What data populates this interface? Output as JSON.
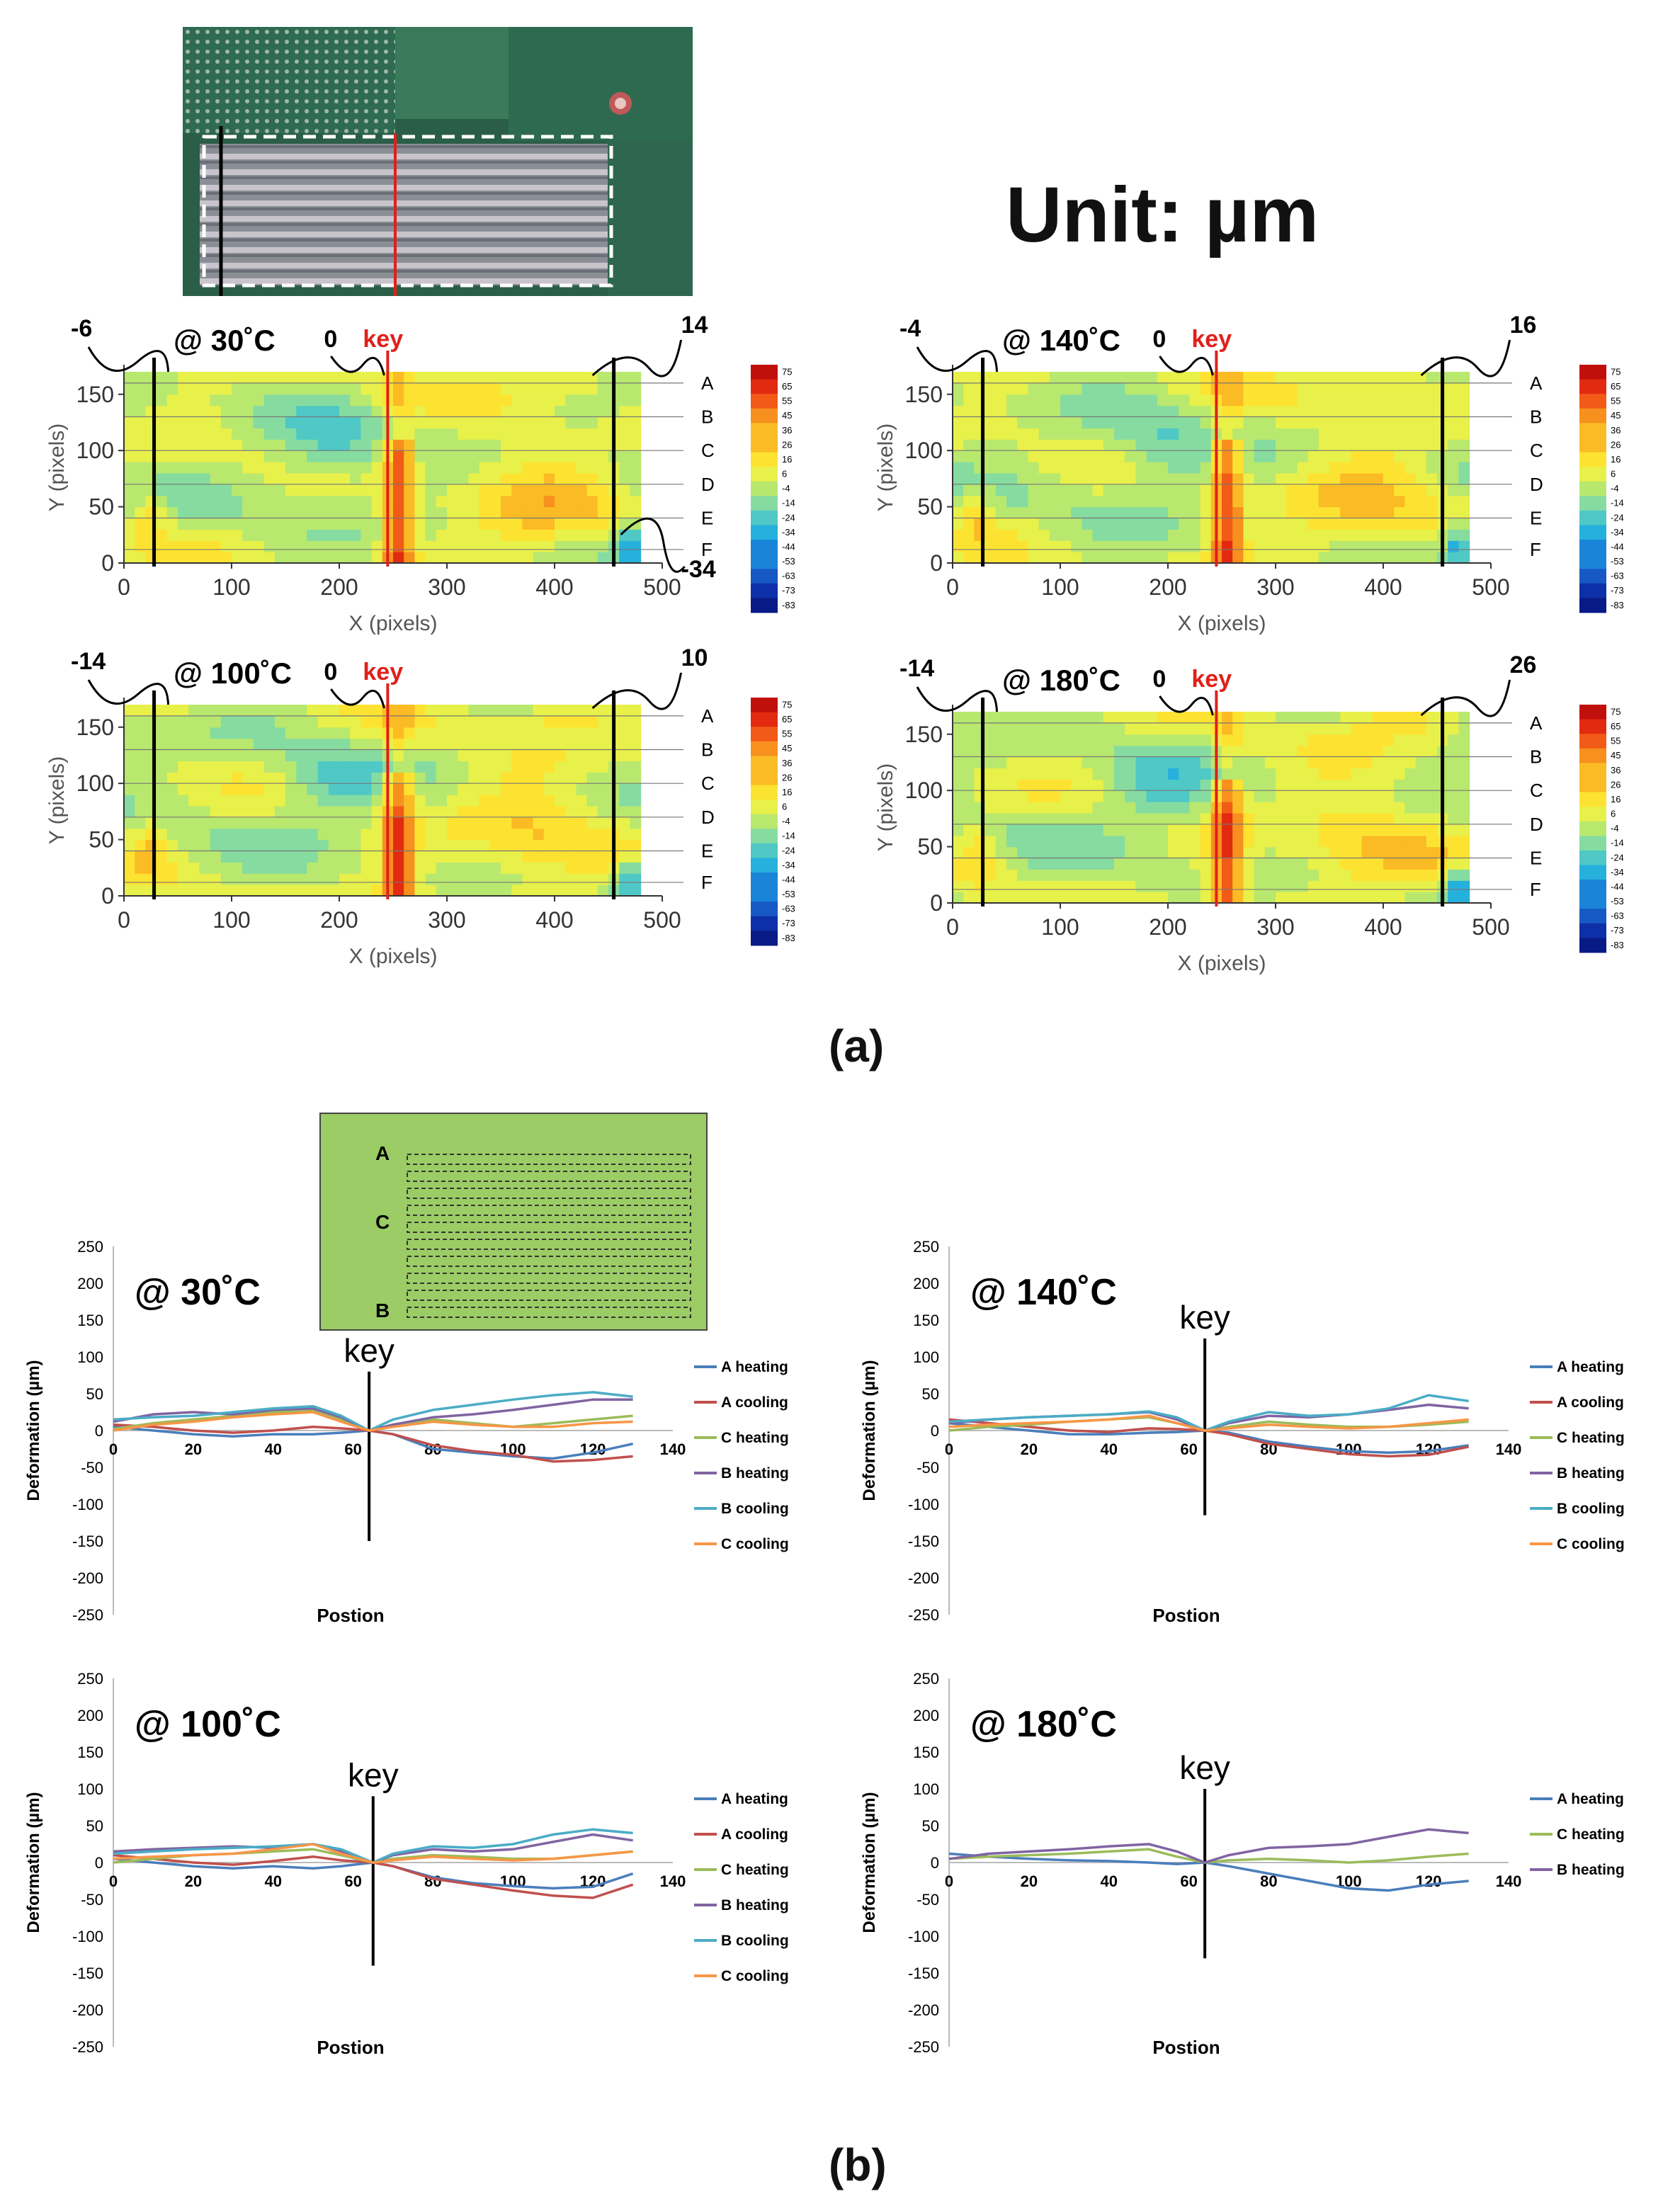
{
  "figure": {
    "unit_title": "Unit: µm",
    "panel_a_label": "(a)",
    "panel_b_label": "(b)"
  },
  "colors": {
    "colorbar": [
      "#c0100c",
      "#e22a10",
      "#f25a17",
      "#f7901e",
      "#fbbb24",
      "#fde331",
      "#e8f04a",
      "#b8e86e",
      "#86dca0",
      "#4fc8c6",
      "#26b0dc",
      "#1a84d8",
      "#1658c4",
      "#0d2fa8",
      "#081a86"
    ],
    "series": {
      "A heating": "#4a7ebb",
      "A cooling": "#c0504d",
      "C heating": "#9bbb59",
      "B heating": "#8064a2",
      "B cooling": "#4bacc6",
      "C cooling": "#f79646"
    },
    "key_line": "#e0201a",
    "inset_background": "#9ccc65"
  },
  "chart_data": [
    {
      "type": "heatmap",
      "title": "@ 30˚C",
      "xlabel": "X (pixels)",
      "ylabel": "Y (pixels)",
      "xlim": [
        0,
        500
      ],
      "ylim": [
        0,
        170
      ],
      "xticks": [
        "0",
        "100",
        "200",
        "300",
        "400",
        "500"
      ],
      "yticks": [
        "0",
        "50",
        "100",
        "150"
      ],
      "row_labels": [
        "A",
        "B",
        "C",
        "D",
        "E",
        "F"
      ],
      "colorbar_ticks": [
        "75",
        "65",
        "55",
        "45",
        "36",
        "26",
        "16",
        "6",
        "-4",
        "-14",
        "-24",
        "-34",
        "-44",
        "-53",
        "-63",
        "-73",
        "-83"
      ],
      "key_label": "key",
      "key_x": 245,
      "left_value": "-6",
      "mid_value": "0",
      "right_value": "14",
      "extra_value": "-34"
    },
    {
      "type": "heatmap",
      "title": "@ 140˚C",
      "xlabel": "X (pixels)",
      "ylabel": "Y (pixels)",
      "xlim": [
        0,
        500
      ],
      "ylim": [
        0,
        170
      ],
      "xticks": [
        "0",
        "100",
        "200",
        "300",
        "400",
        "500"
      ],
      "yticks": [
        "0",
        "50",
        "100",
        "150"
      ],
      "row_labels": [
        "A",
        "B",
        "C",
        "D",
        "E",
        "F"
      ],
      "colorbar_ticks": [
        "75",
        "65",
        "55",
        "45",
        "36",
        "26",
        "16",
        "6",
        "-4",
        "-14",
        "-24",
        "-34",
        "-44",
        "-53",
        "-63",
        "-73",
        "-83"
      ],
      "key_label": "key",
      "key_x": 245,
      "left_value": "-4",
      "mid_value": "0",
      "right_value": "16"
    },
    {
      "type": "heatmap",
      "title": "@ 100˚C",
      "xlabel": "X (pixels)",
      "ylabel": "Y (pixels)",
      "xlim": [
        0,
        500
      ],
      "ylim": [
        0,
        170
      ],
      "xticks": [
        "0",
        "100",
        "200",
        "300",
        "400",
        "500"
      ],
      "yticks": [
        "0",
        "50",
        "100",
        "150"
      ],
      "row_labels": [
        "A",
        "B",
        "C",
        "D",
        "E",
        "F"
      ],
      "colorbar_ticks": [
        "75",
        "65",
        "55",
        "45",
        "36",
        "26",
        "16",
        "6",
        "-4",
        "-14",
        "-24",
        "-34",
        "-44",
        "-53",
        "-63",
        "-73",
        "-83"
      ],
      "key_label": "key",
      "key_x": 245,
      "left_value": "-14",
      "mid_value": "0",
      "right_value": "10"
    },
    {
      "type": "heatmap",
      "title": "@ 180˚C",
      "xlabel": "X (pixels)",
      "ylabel": "Y (pixels)",
      "xlim": [
        0,
        500
      ],
      "ylim": [
        0,
        170
      ],
      "xticks": [
        "0",
        "100",
        "200",
        "300",
        "400",
        "500"
      ],
      "yticks": [
        "0",
        "50",
        "100",
        "150"
      ],
      "row_labels": [
        "A",
        "B",
        "C",
        "D",
        "E",
        "F"
      ],
      "colorbar_ticks": [
        "75",
        "65",
        "55",
        "45",
        "36",
        "26",
        "16",
        "6",
        "-4",
        "-14",
        "-24",
        "-34",
        "-44",
        "-53",
        "-63",
        "-73",
        "-83"
      ],
      "key_label": "key",
      "key_x": 245,
      "left_value": "-14",
      "mid_value": "0",
      "right_value": "26"
    },
    {
      "type": "line",
      "title": "@ 30˚C",
      "xlabel": "Postion",
      "ylabel": "Deformation (µm)",
      "xlim": [
        0,
        140
      ],
      "ylim": [
        -250,
        250
      ],
      "xticks": [
        "0",
        "20",
        "40",
        "60",
        "80",
        "100",
        "120",
        "140"
      ],
      "yticks": [
        "250",
        "200",
        "150",
        "100",
        "50",
        "0",
        "-50",
        "-100",
        "-150",
        "-200",
        "-250"
      ],
      "key_label": "key",
      "key_x": 64,
      "key_range": [
        -150,
        80
      ],
      "x": [
        0,
        10,
        20,
        30,
        40,
        50,
        57,
        64,
        70,
        80,
        90,
        100,
        110,
        120,
        130
      ],
      "series": [
        {
          "name": "A heating",
          "values": [
            5,
            0,
            -5,
            -8,
            -5,
            -5,
            -3,
            0,
            -5,
            -25,
            -30,
            -35,
            -38,
            -30,
            -18
          ]
        },
        {
          "name": "A cooling",
          "values": [
            8,
            5,
            0,
            -3,
            0,
            5,
            3,
            0,
            -5,
            -20,
            -28,
            -33,
            -42,
            -40,
            -35
          ]
        },
        {
          "name": "C heating",
          "values": [
            2,
            10,
            15,
            20,
            25,
            28,
            15,
            0,
            8,
            15,
            10,
            5,
            10,
            15,
            20
          ]
        },
        {
          "name": "B heating",
          "values": [
            12,
            22,
            25,
            22,
            28,
            30,
            18,
            0,
            8,
            18,
            22,
            28,
            35,
            42,
            42
          ]
        },
        {
          "name": "B cooling",
          "values": [
            15,
            18,
            20,
            25,
            30,
            33,
            20,
            0,
            15,
            28,
            35,
            42,
            48,
            52,
            46
          ]
        },
        {
          "name": "C cooling",
          "values": [
            0,
            8,
            12,
            18,
            22,
            25,
            12,
            0,
            5,
            12,
            8,
            5,
            5,
            10,
            12
          ]
        }
      ],
      "inset": {
        "row_labels": [
          "A",
          "C",
          "B"
        ]
      }
    },
    {
      "type": "line",
      "title": "@ 140˚C",
      "xlabel": "Postion",
      "ylabel": "Deformation (µm)",
      "xlim": [
        0,
        140
      ],
      "ylim": [
        -250,
        250
      ],
      "xticks": [
        "0",
        "20",
        "40",
        "60",
        "80",
        "100",
        "120",
        "140"
      ],
      "yticks": [
        "250",
        "200",
        "150",
        "100",
        "50",
        "0",
        "-50",
        "-100",
        "-150",
        "-200",
        "-250"
      ],
      "key_label": "key",
      "key_x": 64,
      "key_range": [
        -115,
        125
      ],
      "x": [
        0,
        10,
        20,
        30,
        40,
        50,
        57,
        64,
        70,
        80,
        90,
        100,
        110,
        120,
        130
      ],
      "series": [
        {
          "name": "A heating",
          "values": [
            10,
            5,
            0,
            -5,
            -5,
            -3,
            -2,
            0,
            -3,
            -15,
            -22,
            -28,
            -30,
            -28,
            -20
          ]
        },
        {
          "name": "A cooling",
          "values": [
            15,
            10,
            5,
            0,
            -2,
            3,
            2,
            0,
            -5,
            -18,
            -25,
            -32,
            -35,
            -33,
            -22
          ]
        },
        {
          "name": "C heating",
          "values": [
            0,
            5,
            8,
            12,
            15,
            18,
            10,
            0,
            5,
            12,
            8,
            5,
            5,
            8,
            12
          ]
        },
        {
          "name": "B heating",
          "values": [
            10,
            15,
            18,
            20,
            22,
            25,
            15,
            0,
            10,
            20,
            18,
            22,
            28,
            35,
            30
          ]
        },
        {
          "name": "B cooling",
          "values": [
            12,
            15,
            18,
            20,
            22,
            26,
            18,
            0,
            12,
            25,
            20,
            22,
            30,
            48,
            40
          ]
        },
        {
          "name": "C cooling",
          "values": [
            5,
            8,
            10,
            12,
            15,
            20,
            10,
            0,
            3,
            8,
            5,
            3,
            5,
            10,
            15
          ]
        }
      ]
    },
    {
      "type": "line",
      "title": "@ 100˚C",
      "xlabel": "Postion",
      "ylabel": "Deformation (µm)",
      "xlim": [
        0,
        140
      ],
      "ylim": [
        -250,
        250
      ],
      "xticks": [
        "0",
        "20",
        "40",
        "60",
        "80",
        "100",
        "120",
        "140"
      ],
      "yticks": [
        "250",
        "200",
        "150",
        "100",
        "50",
        "0",
        "-50",
        "-100",
        "-150",
        "-200",
        "-250"
      ],
      "key_label": "key",
      "key_x": 65,
      "key_range": [
        -140,
        90
      ],
      "x": [
        0,
        10,
        20,
        30,
        40,
        50,
        57,
        65,
        70,
        80,
        90,
        100,
        110,
        120,
        130
      ],
      "series": [
        {
          "name": "A heating",
          "values": [
            5,
            0,
            -5,
            -8,
            -5,
            -8,
            -5,
            0,
            -5,
            -20,
            -28,
            -32,
            -35,
            -33,
            -15
          ]
        },
        {
          "name": "A cooling",
          "values": [
            10,
            5,
            0,
            -3,
            2,
            8,
            3,
            0,
            -5,
            -22,
            -30,
            -38,
            -45,
            -48,
            -30
          ]
        },
        {
          "name": "C heating",
          "values": [
            0,
            5,
            10,
            12,
            15,
            18,
            10,
            0,
            5,
            10,
            8,
            5,
            5,
            10,
            15
          ]
        },
        {
          "name": "B heating",
          "values": [
            15,
            18,
            20,
            22,
            20,
            25,
            15,
            0,
            10,
            18,
            15,
            18,
            28,
            38,
            30
          ]
        },
        {
          "name": "B cooling",
          "values": [
            12,
            15,
            18,
            20,
            22,
            25,
            18,
            0,
            12,
            22,
            20,
            25,
            38,
            45,
            40
          ]
        },
        {
          "name": "C cooling",
          "values": [
            5,
            8,
            10,
            12,
            18,
            25,
            12,
            0,
            3,
            8,
            5,
            3,
            5,
            10,
            15
          ]
        }
      ]
    },
    {
      "type": "line",
      "title": "@ 180˚C",
      "xlabel": "Postion",
      "ylabel": "Deformation (µm)",
      "xlim": [
        0,
        140
      ],
      "ylim": [
        -250,
        250
      ],
      "xticks": [
        "0",
        "20",
        "40",
        "60",
        "80",
        "100",
        "120",
        "140"
      ],
      "yticks": [
        "250",
        "200",
        "150",
        "100",
        "50",
        "0",
        "-50",
        "-100",
        "-150",
        "-200",
        "-250"
      ],
      "key_label": "key",
      "key_x": 64,
      "key_range": [
        -130,
        100
      ],
      "x": [
        0,
        10,
        20,
        30,
        40,
        50,
        57,
        64,
        70,
        80,
        90,
        100,
        110,
        120,
        130
      ],
      "series": [
        {
          "name": "A heating",
          "values": [
            12,
            8,
            5,
            3,
            2,
            0,
            -2,
            0,
            -5,
            -15,
            -25,
            -35,
            -38,
            -30,
            -25
          ]
        },
        {
          "name": "C heating",
          "values": [
            5,
            8,
            10,
            12,
            15,
            18,
            8,
            0,
            3,
            5,
            3,
            0,
            3,
            8,
            12
          ]
        },
        {
          "name": "B heating",
          "values": [
            5,
            12,
            15,
            18,
            22,
            25,
            15,
            0,
            10,
            20,
            22,
            25,
            35,
            45,
            40
          ]
        }
      ]
    }
  ]
}
